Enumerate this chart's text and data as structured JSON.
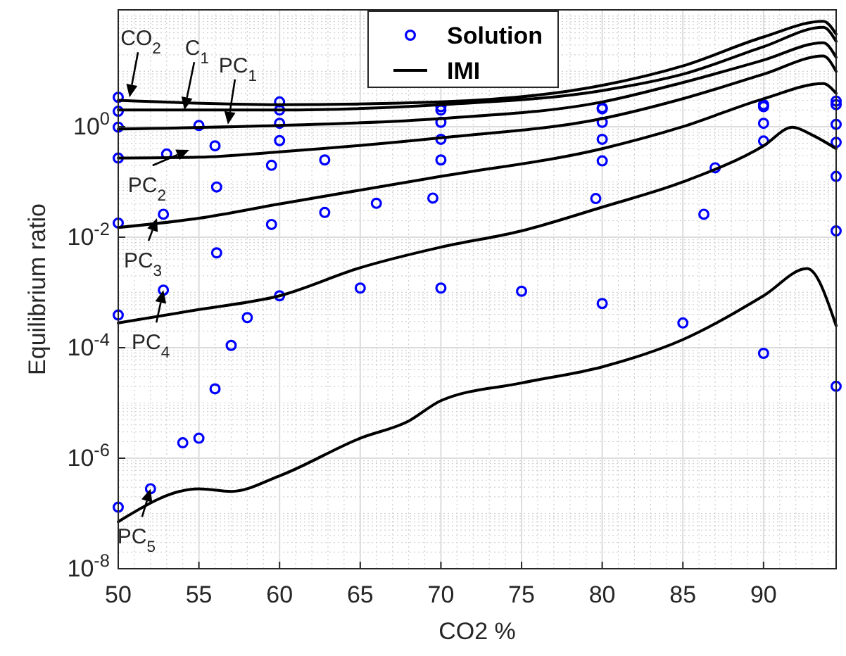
{
  "chart_data": {
    "type": "scatter",
    "xlabel": "CO2 %",
    "ylabel": "Equilibrium ratio",
    "log": "y",
    "grid": true,
    "legend": "top",
    "xlim": [
      50,
      94.5
    ],
    "xticks": [
      50,
      55,
      60,
      65,
      70,
      75,
      80,
      85,
      90
    ],
    "ylim": [
      1e-08,
      130
    ],
    "yticks": [
      {
        "value": 1e-08,
        "label": "10$^{-8}$"
      },
      {
        "value": 1e-06,
        "label": "10$^{-6}$"
      },
      {
        "value": 0.0001,
        "label": "10$^{-4}$"
      },
      {
        "value": 0.01,
        "label": "10$^{-2}$"
      },
      {
        "value": 1,
        "label": "10$^{0}$"
      }
    ],
    "series": [
      {
        "name": "Solution",
        "marker": "circle",
        "color": "#0000ff",
        "x": [
          50,
          60,
          70,
          80,
          90,
          94.5,
          50,
          60,
          70,
          80,
          90,
          94.5,
          50,
          55,
          60,
          70,
          80,
          90,
          94.5,
          50,
          53,
          56,
          60,
          70,
          80,
          90,
          94.5,
          50,
          52.8,
          56.1,
          59.5,
          62.8,
          70,
          80,
          87,
          94.5,
          50,
          52.8,
          56.1,
          59.5,
          62.8,
          66,
          69.5,
          79.6,
          86.3,
          94.5,
          50,
          52,
          54,
          55,
          56,
          57,
          58,
          60,
          65,
          70,
          75,
          80,
          85,
          90,
          94.5
        ],
        "values": [
          3.4,
          2.8,
          2.3,
          2.2,
          2.5,
          2.9,
          1.9,
          2.0,
          2.0,
          2.1,
          2.3,
          2.5,
          0.98,
          1.05,
          1.15,
          1.2,
          1.2,
          1.15,
          1.1,
          0.27,
          0.32,
          0.45,
          0.56,
          0.59,
          0.59,
          0.55,
          0.52,
          0.018,
          0.026,
          0.081,
          0.2,
          0.25,
          0.25,
          0.24,
          0.18,
          0.126,
          0.00039,
          0.0011,
          0.0052,
          0.017,
          0.028,
          0.041,
          0.051,
          0.05,
          0.026,
          0.013,
          1.3e-07,
          2.8e-07,
          1.9e-06,
          2.3e-06,
          1.8e-05,
          0.00011,
          0.00035,
          0.00087,
          0.0012,
          0.0012,
          0.00105,
          0.00063,
          0.00028,
          7.9e-05,
          2e-05
        ]
      },
      {
        "name": "IMI",
        "type": "line",
        "marker": "none",
        "color": "#000000",
        "x": [
          50,
          60,
          70,
          80,
          85,
          90,
          93.7,
          94.5,
          50,
          60,
          70,
          80,
          85,
          90,
          93.7,
          94.5,
          50,
          60,
          70,
          80,
          85,
          90,
          93.7,
          94.5,
          50,
          55,
          60,
          70,
          80,
          85,
          90,
          93.7,
          94.5,
          50,
          55,
          60,
          70,
          80,
          85,
          90,
          93.7,
          94.5,
          50,
          55,
          60,
          65,
          70,
          75,
          80,
          85,
          90,
          91.8,
          93,
          94.5,
          50,
          55,
          57,
          60,
          65,
          68,
          70,
          75,
          80,
          85,
          90,
          92.7,
          94.5
        ],
        "values": [
          3.0,
          2.5,
          2.8,
          5.6,
          12.6,
          42,
          81,
          47,
          2.0,
          2.0,
          2.5,
          4.5,
          8.9,
          28,
          63,
          35,
          0.91,
          1.05,
          1.4,
          2.8,
          6.3,
          16,
          33,
          18,
          0.27,
          0.28,
          0.35,
          0.63,
          1.4,
          3.2,
          8.9,
          19,
          10,
          0.015,
          0.022,
          0.04,
          0.126,
          0.4,
          1.0,
          3.2,
          6.0,
          4.0,
          0.00028,
          0.00049,
          0.00087,
          0.0028,
          0.0066,
          0.013,
          0.035,
          0.1,
          0.45,
          0.98,
          0.71,
          0.4,
          7.1e-08,
          2.8e-07,
          2.5e-07,
          4.8e-07,
          2.3e-06,
          4.7e-06,
          1.1e-05,
          2.3e-05,
          4.5e-05,
          0.00014,
          0.00087,
          0.0027,
          0.00025
        ]
      }
    ],
    "annotations": [
      {
        "text": "CO$_{2}$",
        "x": 50.7,
        "y": 3.4
      },
      {
        "text": "C$_{1}$",
        "x": 54.1,
        "y": 2.0
      },
      {
        "text": "PC$_{1}$",
        "x": 56.8,
        "y": 1.1
      },
      {
        "text": "PC$_{2}$",
        "x": 54.4,
        "y": 0.38
      },
      {
        "text": "PC$_{3}$",
        "x": 52.4,
        "y": 0.022
      },
      {
        "text": "PC$_{4}$",
        "x": 52.8,
        "y": 0.0011
      },
      {
        "text": "PC$_{5}$",
        "x": 52,
        "y": 2.8e-07
      }
    ]
  }
}
